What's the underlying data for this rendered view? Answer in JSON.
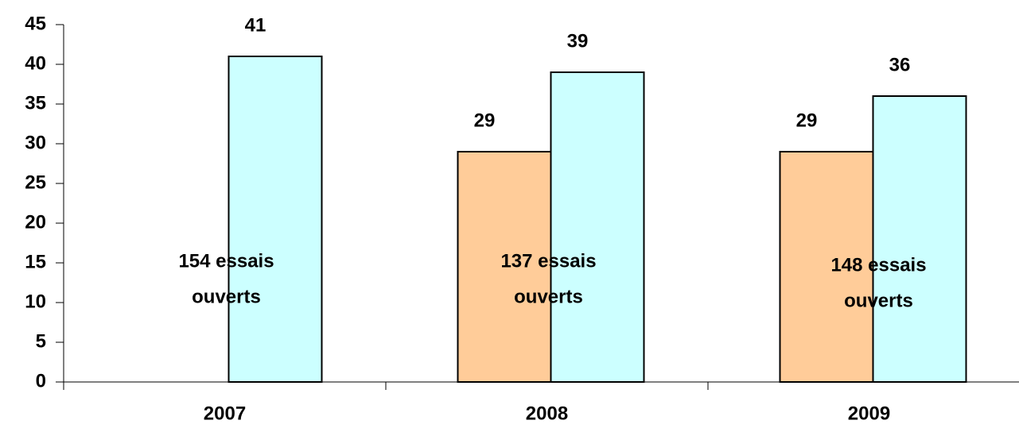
{
  "chart_data": {
    "type": "bar",
    "categories": [
      "2007",
      "2008",
      "2009"
    ],
    "series": [
      {
        "color": "#FFCC99",
        "values": [
          null,
          29,
          29
        ]
      },
      {
        "color": "#CCFFFF",
        "values": [
          41,
          39,
          36
        ]
      }
    ],
    "annotations": [
      [
        "154 essais",
        "ouverts"
      ],
      [
        "137 essais",
        "ouverts"
      ],
      [
        "148 essais",
        "ouverts"
      ]
    ],
    "ylim": [
      0,
      45
    ],
    "yticks": [
      0,
      5,
      10,
      15,
      20,
      25,
      30,
      35,
      40,
      45
    ],
    "grid": false
  }
}
